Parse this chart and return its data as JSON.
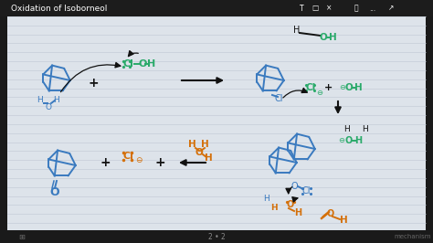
{
  "title": "Oxidation of Isoborneol",
  "bg_color": "#1a1a1a",
  "whiteboard_color": "#dde3ea",
  "ruled_line_color": "#bfc8d4",
  "line_color_blue": "#3a7abf",
  "line_color_green": "#2aaa6a",
  "line_color_orange": "#d4700a",
  "line_color_black": "#111111",
  "page_indicator": "2 • 2",
  "bottom_label": "mechanism"
}
